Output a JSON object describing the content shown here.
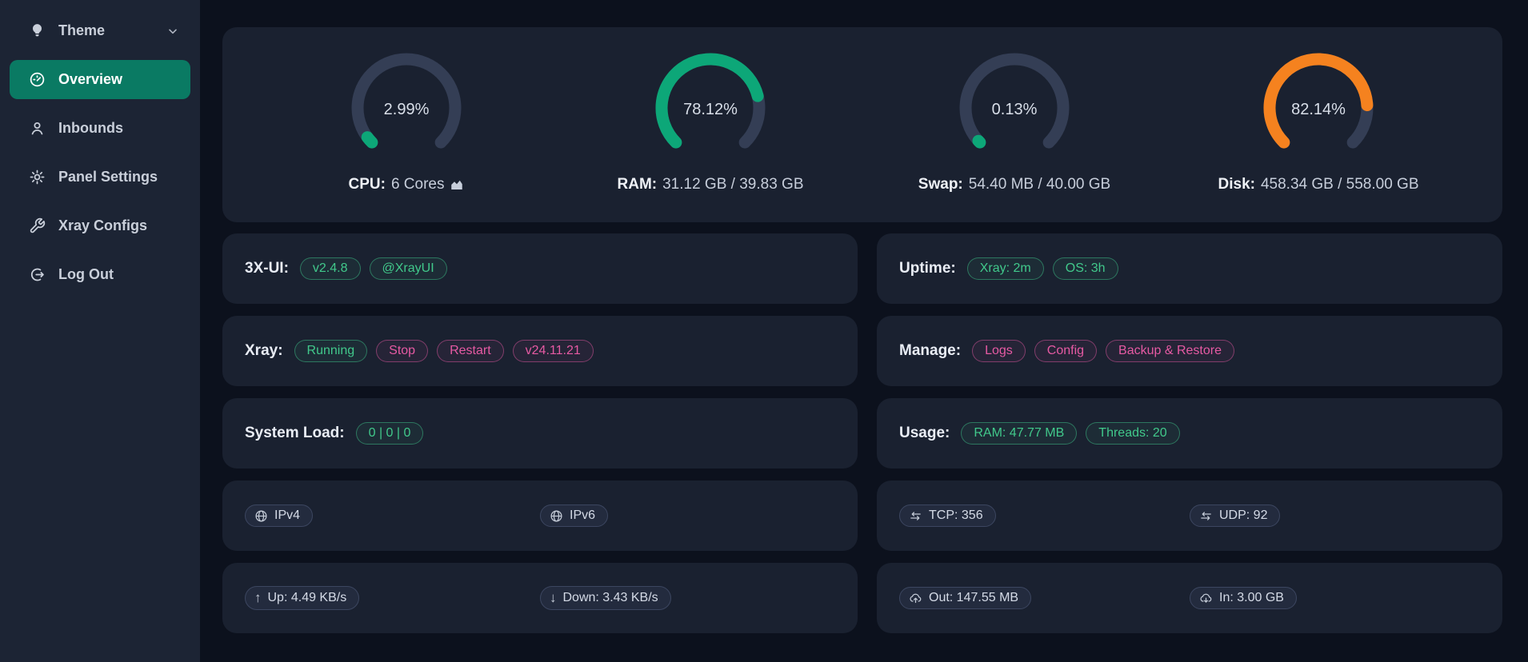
{
  "colors": {
    "gauge_green": "#0da778",
    "gauge_orange": "#f5821f",
    "gauge_track": "#343e55",
    "badge_green": "#41c98b",
    "badge_pink": "#e65aa3",
    "active_sidebar_bg": "#0a7a63"
  },
  "sidebar": {
    "theme_label": "Theme",
    "items": [
      {
        "label": "Overview"
      },
      {
        "label": "Inbounds"
      },
      {
        "label": "Panel Settings"
      },
      {
        "label": "Xray Configs"
      },
      {
        "label": "Log Out"
      }
    ]
  },
  "gauges": [
    {
      "name": "cpu",
      "percent": 2.99,
      "value_text": "2.99%",
      "color": "#0da778",
      "label": "CPU:",
      "detail": "6 Cores"
    },
    {
      "name": "ram",
      "percent": 78.12,
      "value_text": "78.12%",
      "color": "#0da778",
      "label": "RAM:",
      "detail": "31.12 GB / 39.83 GB"
    },
    {
      "name": "swap",
      "percent": 0.13,
      "value_text": "0.13%",
      "color": "#0da778",
      "label": "Swap:",
      "detail": "54.40 MB / 40.00 GB"
    },
    {
      "name": "disk",
      "percent": 82.14,
      "value_text": "82.14%",
      "color": "#f5821f",
      "label": "Disk:",
      "detail": "458.34 GB / 558.00 GB"
    }
  ],
  "cards": {
    "xui": {
      "label": "3X-UI:",
      "badges": [
        "v2.4.8",
        "@XrayUI"
      ]
    },
    "uptime": {
      "label": "Uptime:",
      "badges": [
        "Xray: 2m",
        "OS: 3h"
      ]
    },
    "xray": {
      "label": "Xray:",
      "badges": [
        "Running",
        "Stop",
        "Restart",
        "v24.11.21"
      ]
    },
    "manage": {
      "label": "Manage:",
      "badges": [
        "Logs",
        "Config",
        "Backup & Restore"
      ]
    },
    "system_load": {
      "label": "System Load:",
      "badges": [
        "0 | 0 | 0"
      ]
    },
    "usage": {
      "label": "Usage:",
      "badges": [
        "RAM: 47.77 MB",
        "Threads: 20"
      ]
    },
    "ip": {
      "tags": [
        "IPv4",
        "IPv6"
      ]
    },
    "conn": {
      "tags": [
        "TCP: 356",
        "UDP: 92"
      ]
    },
    "speed": {
      "tags": [
        "Up: 4.49 KB/s",
        "Down: 3.43 KB/s"
      ]
    },
    "traffic": {
      "tags": [
        "Out: 147.55 MB",
        "In: 3.00 GB"
      ]
    }
  }
}
